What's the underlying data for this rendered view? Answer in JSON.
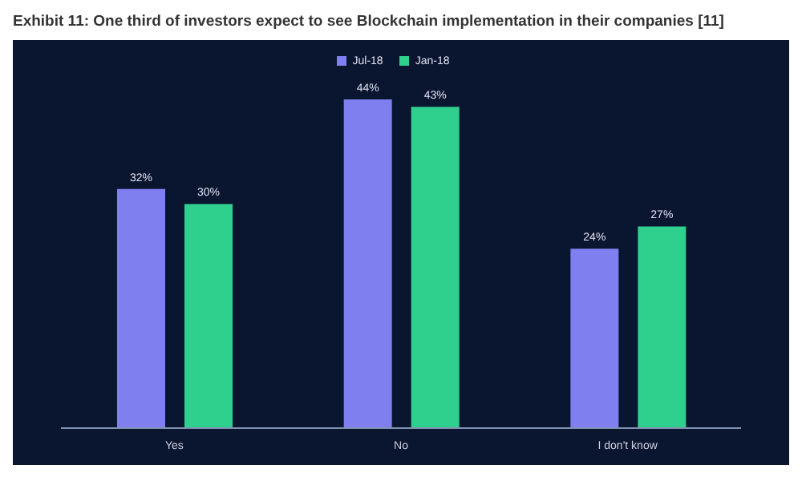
{
  "chart_data": {
    "type": "bar",
    "title": "Exhibit 11: One third of investors expect to see Blockchain implementation in their companies [11]",
    "categories": [
      "Yes",
      "No",
      "I don't know"
    ],
    "series": [
      {
        "name": "Jul-18",
        "color": "#7f7ff0",
        "values": [
          32,
          44,
          24
        ],
        "value_labels": [
          "32%",
          "44%",
          "24%"
        ]
      },
      {
        "name": "Jan-18",
        "color": "#2fcf8e",
        "values": [
          30,
          43,
          27
        ],
        "value_labels": [
          "30%",
          "43%",
          "27%"
        ]
      }
    ],
    "legend": "top",
    "grid": false
  }
}
